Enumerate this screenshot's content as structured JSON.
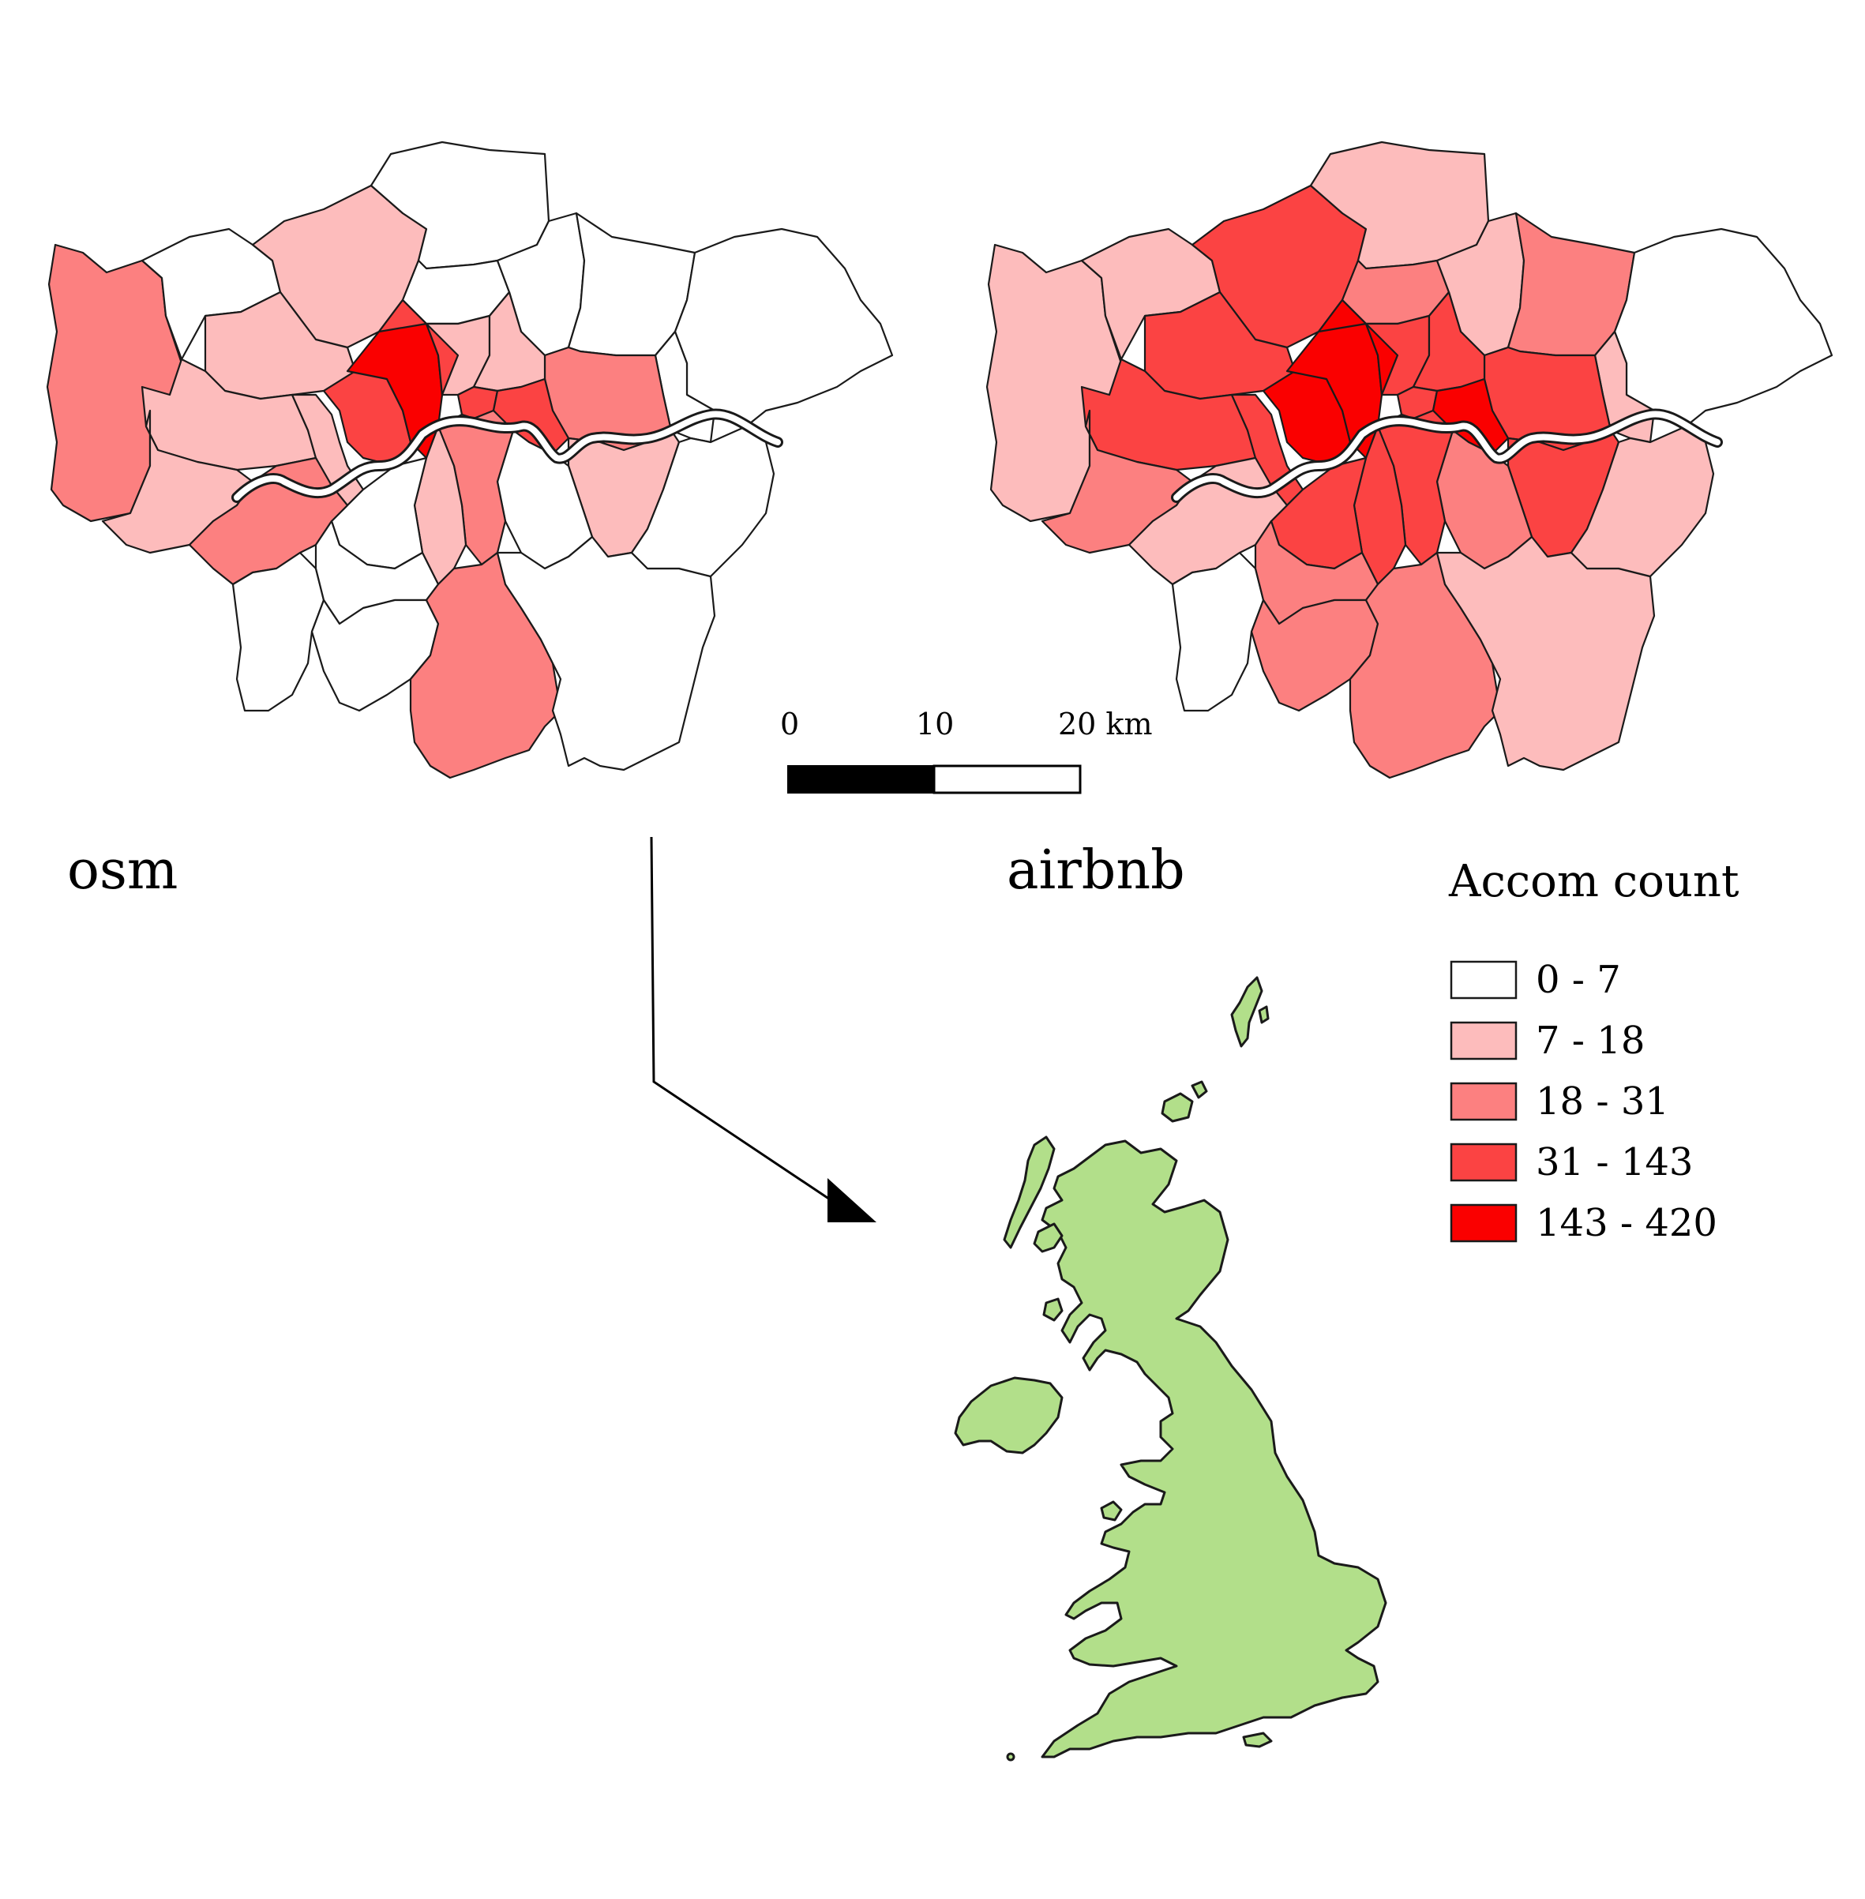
{
  "classes": [
    {
      "label": "0 - 7",
      "color": "#ffffff"
    },
    {
      "label": "7 - 18",
      "color": "#fdbcbc"
    },
    {
      "label": "18 - 31",
      "color": "#fc8080"
    },
    {
      "label": "31 - 143",
      "color": "#fb4343"
    },
    {
      "label": "143 - 420",
      "color": "#fa0000"
    }
  ],
  "legend": {
    "title": "Accom count"
  },
  "maps": [
    {
      "title": "osm",
      "boroughs": [
        {
          "id": "hillingdon",
          "cls": 2
        },
        {
          "id": "harrow",
          "cls": 0
        },
        {
          "id": "barnet",
          "cls": 1
        },
        {
          "id": "enfield",
          "cls": 0
        },
        {
          "id": "brent",
          "cls": 1
        },
        {
          "id": "haringey",
          "cls": 0
        },
        {
          "id": "waltham-forest",
          "cls": 0
        },
        {
          "id": "redbridge",
          "cls": 0
        },
        {
          "id": "havering",
          "cls": 0
        },
        {
          "id": "barking-dagenham",
          "cls": 0
        },
        {
          "id": "newham",
          "cls": 2
        },
        {
          "id": "ealing",
          "cls": 1
        },
        {
          "id": "hounslow",
          "cls": 1
        },
        {
          "id": "hammersmith-fulham",
          "cls": 1
        },
        {
          "id": "kensington-chelsea",
          "cls": 3
        },
        {
          "id": "westminster",
          "cls": 4
        },
        {
          "id": "camden",
          "cls": 3
        },
        {
          "id": "islington",
          "cls": 1
        },
        {
          "id": "hackney",
          "cls": 1
        },
        {
          "id": "city",
          "cls": 3
        },
        {
          "id": "tower-hamlets",
          "cls": 3
        },
        {
          "id": "greenwich",
          "cls": 1
        },
        {
          "id": "lewisham",
          "cls": 0
        },
        {
          "id": "southwark",
          "cls": 2
        },
        {
          "id": "lambeth",
          "cls": 1
        },
        {
          "id": "wandsworth",
          "cls": 0
        },
        {
          "id": "richmond",
          "cls": 2
        },
        {
          "id": "kingston",
          "cls": 0
        },
        {
          "id": "merton",
          "cls": 0
        },
        {
          "id": "sutton",
          "cls": 0
        },
        {
          "id": "croydon",
          "cls": 2
        },
        {
          "id": "bromley",
          "cls": 0
        },
        {
          "id": "bexley",
          "cls": 0
        }
      ]
    },
    {
      "title": "airbnb",
      "boroughs": [
        {
          "id": "hillingdon",
          "cls": 1
        },
        {
          "id": "harrow",
          "cls": 1
        },
        {
          "id": "barnet",
          "cls": 3
        },
        {
          "id": "enfield",
          "cls": 1
        },
        {
          "id": "brent",
          "cls": 3
        },
        {
          "id": "haringey",
          "cls": 2
        },
        {
          "id": "waltham-forest",
          "cls": 1
        },
        {
          "id": "redbridge",
          "cls": 2
        },
        {
          "id": "havering",
          "cls": 0
        },
        {
          "id": "barking-dagenham",
          "cls": 1
        },
        {
          "id": "newham",
          "cls": 3
        },
        {
          "id": "ealing",
          "cls": 3
        },
        {
          "id": "hounslow",
          "cls": 2
        },
        {
          "id": "hammersmith-fulham",
          "cls": 3
        },
        {
          "id": "kensington-chelsea",
          "cls": 4
        },
        {
          "id": "westminster",
          "cls": 4
        },
        {
          "id": "camden",
          "cls": 4
        },
        {
          "id": "islington",
          "cls": 3
        },
        {
          "id": "hackney",
          "cls": 3
        },
        {
          "id": "city",
          "cls": 3
        },
        {
          "id": "tower-hamlets",
          "cls": 4
        },
        {
          "id": "greenwich",
          "cls": 3
        },
        {
          "id": "lewisham",
          "cls": 2
        },
        {
          "id": "southwark",
          "cls": 3
        },
        {
          "id": "lambeth",
          "cls": 3
        },
        {
          "id": "wandsworth",
          "cls": 3
        },
        {
          "id": "richmond",
          "cls": 1
        },
        {
          "id": "kingston",
          "cls": 0
        },
        {
          "id": "merton",
          "cls": 2
        },
        {
          "id": "sutton",
          "cls": 2
        },
        {
          "id": "croydon",
          "cls": 2
        },
        {
          "id": "bromley",
          "cls": 1
        },
        {
          "id": "bexley",
          "cls": 1
        }
      ]
    }
  ],
  "scale_bar": {
    "labels": [
      "0",
      "10",
      "20 km"
    ]
  },
  "inset": {
    "region": "United Kingdom",
    "fill": "#b2df8a"
  }
}
